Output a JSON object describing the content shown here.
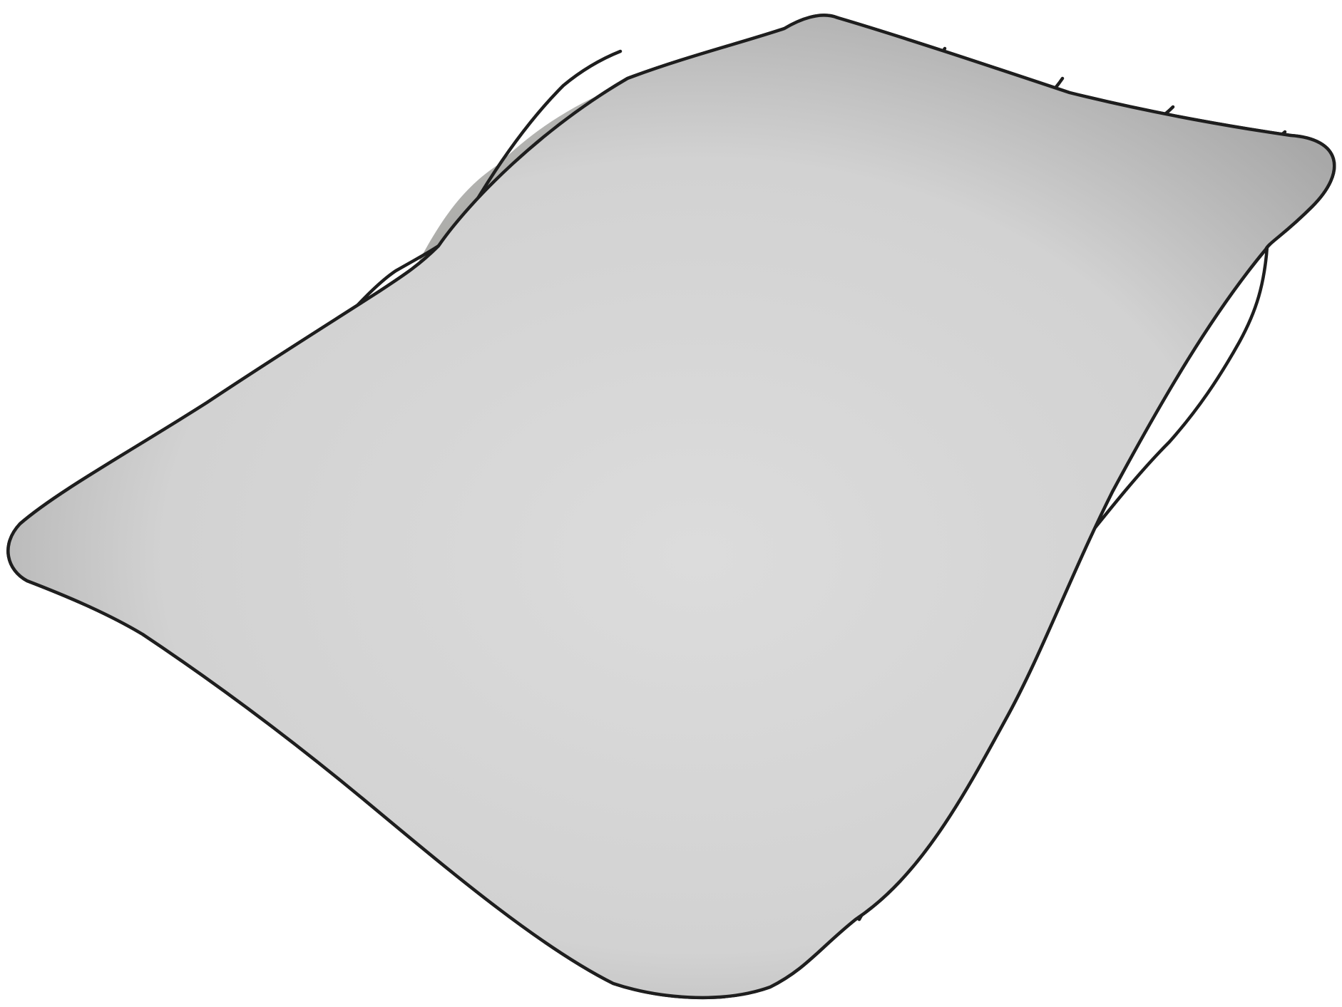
{
  "figure": {
    "kind": "3D bump surface with inscribed triangular section",
    "colors": {
      "background": "#ffffff",
      "surface_light": "#d6d6d6",
      "surface_mid": "#a7a7a5",
      "surface_dark": "#8a8a86",
      "section_fill": "#4d4d49",
      "section_fill_dark": "#3b3b38",
      "grid_line": "#1e1e1e"
    },
    "icons": {
      "surface": "wire-mesh-surface-icon",
      "section": "triangle-section-icon"
    }
  }
}
